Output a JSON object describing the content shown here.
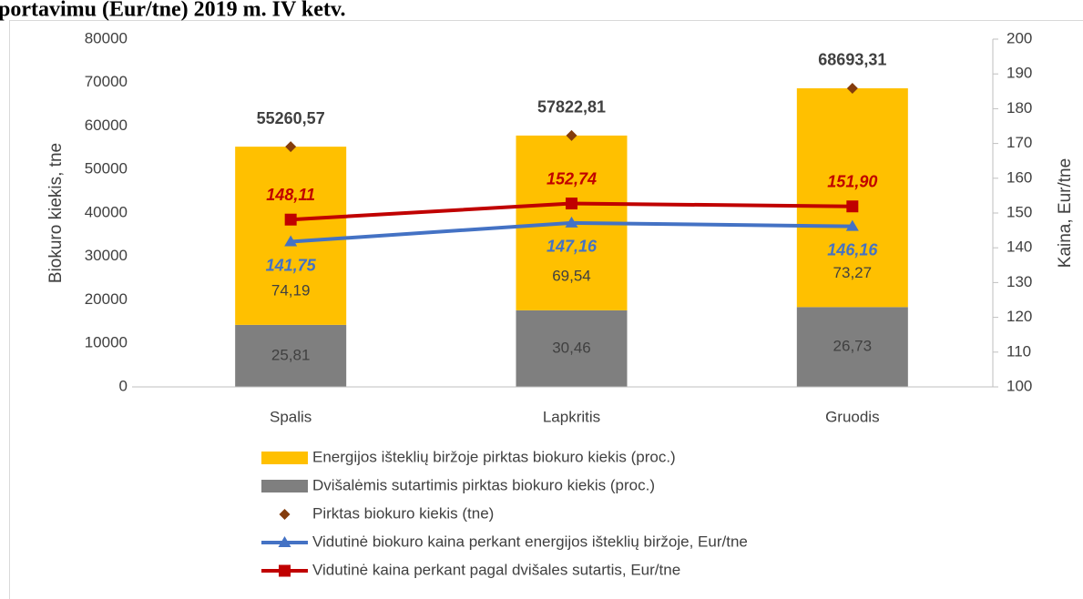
{
  "chart_data": {
    "type": "bar",
    "title": "portavimu (Eur/tne) 2019 m. IV ketv.",
    "ylabel": "Biokuro kiekis, tne",
    "y2label": "Kaina, Eur/tne",
    "categories": [
      "Spalis",
      "Lapkritis",
      "Gruodis"
    ],
    "ylim": [
      0,
      80000
    ],
    "yticks": [
      0,
      10000,
      20000,
      30000,
      40000,
      50000,
      60000,
      70000,
      80000
    ],
    "y2lim": [
      100,
      200
    ],
    "y2ticks": [
      100,
      110,
      120,
      130,
      140,
      150,
      160,
      170,
      180,
      190,
      200
    ],
    "series": [
      {
        "name": "Energijos išteklių biržoje pirktas biokuro kiekis (proc.)",
        "type": "bar",
        "color": "#ffc000",
        "values": [
          74.19,
          69.54,
          73.27
        ],
        "value_labels": [
          "74,19",
          "69,54",
          "73,27"
        ]
      },
      {
        "name": "Dvišalėmis sutartimis pirktas biokuro kiekis (proc.)",
        "type": "bar",
        "color": "#7f7f7f",
        "values": [
          25.81,
          30.46,
          26.73
        ],
        "value_labels": [
          "25,81",
          "30,46",
          "26,73"
        ]
      },
      {
        "name": "Pirktas biokuro kiekis (tne)",
        "type": "scatter",
        "color": "#843c0c",
        "marker": "diamond",
        "values": [
          55260.57,
          57822.81,
          68693.31
        ],
        "value_labels": [
          "55260,57",
          "57822,81",
          "68693,31"
        ]
      },
      {
        "name": "Vidutinė biokuro kaina perkant energijos išteklių biržoje, Eur/tne",
        "type": "line",
        "axis": "y2",
        "color": "#4472c4",
        "marker": "triangle",
        "values": [
          141.75,
          147.16,
          146.16
        ],
        "value_labels": [
          "141,75",
          "147,16",
          "146,16"
        ]
      },
      {
        "name": "Vidutinė kaina perkant pagal dvišales sutartis, Eur/tne",
        "type": "line",
        "axis": "y2",
        "color": "#c00000",
        "marker": "square",
        "values": [
          148.11,
          152.74,
          151.9
        ],
        "value_labels": [
          "148,11",
          "152,74",
          "151,90"
        ]
      }
    ]
  }
}
